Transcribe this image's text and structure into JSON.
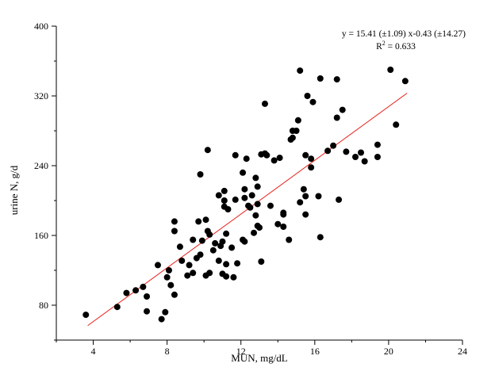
{
  "chart_data": {
    "type": "scatter",
    "xlabel": "MUN, mg/dL",
    "ylabel": "urine N, g/d",
    "xlim": [
      2,
      24
    ],
    "ylim": [
      40,
      400
    ],
    "xticks": [
      4,
      8,
      12,
      16,
      20,
      24
    ],
    "yticks": [
      80,
      160,
      240,
      320,
      400
    ],
    "grid": false,
    "colors": {
      "points": "#000000",
      "fit_line": "#e8221c",
      "axes": "#000000"
    },
    "equation": "y = 15.41 (±1.09) x-0.43 (±14.27)",
    "r_squared_label": "R",
    "r_squared_exp": "2",
    "r_squared_value": " = 0.633",
    "fit": {
      "slope": 15.41,
      "intercept": -0.43,
      "x_range": [
        3.7,
        21.0
      ]
    },
    "points": [
      [
        3.6,
        69
      ],
      [
        5.3,
        78
      ],
      [
        5.8,
        94
      ],
      [
        6.3,
        97
      ],
      [
        6.7,
        101
      ],
      [
        6.9,
        73
      ],
      [
        6.9,
        90
      ],
      [
        7.5,
        126
      ],
      [
        7.7,
        64
      ],
      [
        7.9,
        72
      ],
      [
        8.0,
        112
      ],
      [
        8.1,
        120
      ],
      [
        8.2,
        103
      ],
      [
        8.4,
        92
      ],
      [
        8.4,
        165
      ],
      [
        8.4,
        176
      ],
      [
        8.7,
        147
      ],
      [
        8.8,
        131
      ],
      [
        9.1,
        114
      ],
      [
        9.2,
        126
      ],
      [
        9.4,
        155
      ],
      [
        9.4,
        117
      ],
      [
        9.6,
        134
      ],
      [
        9.7,
        176
      ],
      [
        9.8,
        138
      ],
      [
        9.8,
        230
      ],
      [
        9.9,
        154
      ],
      [
        10.1,
        178
      ],
      [
        10.1,
        114
      ],
      [
        10.2,
        165
      ],
      [
        10.2,
        258
      ],
      [
        10.3,
        117
      ],
      [
        10.3,
        161
      ],
      [
        10.5,
        143
      ],
      [
        10.6,
        151
      ],
      [
        10.8,
        131
      ],
      [
        10.8,
        206
      ],
      [
        10.9,
        148
      ],
      [
        11.0,
        153
      ],
      [
        11.0,
        116
      ],
      [
        11.1,
        200
      ],
      [
        11.1,
        193
      ],
      [
        11.1,
        211
      ],
      [
        11.2,
        127
      ],
      [
        11.2,
        162
      ],
      [
        11.2,
        113
      ],
      [
        11.3,
        190
      ],
      [
        11.5,
        146
      ],
      [
        11.6,
        112
      ],
      [
        11.7,
        252
      ],
      [
        11.7,
        201
      ],
      [
        11.8,
        128
      ],
      [
        12.1,
        232
      ],
      [
        12.1,
        155
      ],
      [
        12.2,
        213
      ],
      [
        12.2,
        203
      ],
      [
        12.2,
        153
      ],
      [
        12.3,
        248
      ],
      [
        12.4,
        194
      ],
      [
        12.5,
        192
      ],
      [
        12.6,
        206
      ],
      [
        12.7,
        163
      ],
      [
        12.8,
        183
      ],
      [
        12.8,
        226
      ],
      [
        12.9,
        171
      ],
      [
        12.9,
        216
      ],
      [
        12.9,
        196
      ],
      [
        13.0,
        169
      ],
      [
        13.1,
        130
      ],
      [
        13.1,
        253
      ],
      [
        13.3,
        311
      ],
      [
        13.3,
        254
      ],
      [
        13.4,
        252
      ],
      [
        13.6,
        194
      ],
      [
        13.8,
        246
      ],
      [
        14.0,
        173
      ],
      [
        14.1,
        249
      ],
      [
        14.3,
        186
      ],
      [
        14.3,
        170
      ],
      [
        14.3,
        184
      ],
      [
        14.6,
        155
      ],
      [
        14.7,
        270
      ],
      [
        14.8,
        272
      ],
      [
        14.8,
        280
      ],
      [
        15.0,
        280
      ],
      [
        15.1,
        292
      ],
      [
        15.2,
        349
      ],
      [
        15.2,
        198
      ],
      [
        15.4,
        213
      ],
      [
        15.5,
        205
      ],
      [
        15.5,
        184
      ],
      [
        15.5,
        252
      ],
      [
        15.6,
        320
      ],
      [
        15.8,
        248
      ],
      [
        15.8,
        238
      ],
      [
        15.9,
        313
      ],
      [
        16.2,
        205
      ],
      [
        16.3,
        340
      ],
      [
        16.3,
        158
      ],
      [
        16.7,
        257
      ],
      [
        17.0,
        263
      ],
      [
        17.2,
        295
      ],
      [
        17.2,
        339
      ],
      [
        17.3,
        201
      ],
      [
        17.5,
        304
      ],
      [
        17.7,
        256
      ],
      [
        18.2,
        250
      ],
      [
        18.5,
        255
      ],
      [
        18.7,
        245
      ],
      [
        19.4,
        264
      ],
      [
        19.4,
        250
      ],
      [
        20.1,
        350
      ],
      [
        20.4,
        287
      ],
      [
        20.9,
        337
      ]
    ]
  }
}
